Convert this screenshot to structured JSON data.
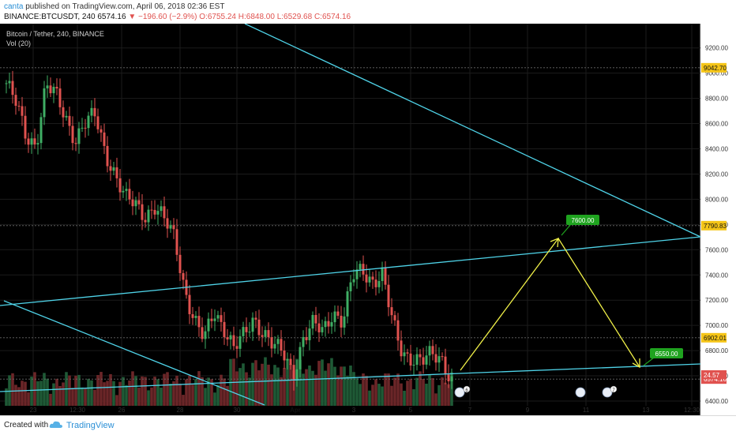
{
  "header": {
    "author": "canta",
    "published": "published on TradingView.com, April 06, 2018 02:36 EST",
    "symbol": "BINANCE:BTCUSDT, 240",
    "change": "−196.60 (−2.9%)",
    "ohlc": "O:6755.24 H:6848.00 L:6529.68 C:6574.16",
    "last": "6574.16"
  },
  "legend": {
    "title": "Bitcoin / Tether, 240, BINANCE",
    "vol": "Vol (20)"
  },
  "colors": {
    "background": "#000000",
    "up": "#3fae64",
    "down": "#e0524f",
    "trendline": "#4fd3e8",
    "arrow": "#f0f048",
    "target_label": "#1fa31f"
  },
  "footer": {
    "created_with": "Created with",
    "brand": "TradingView"
  },
  "chart_data": {
    "type": "candlestick",
    "title": "Bitcoin / Tether, 240, BINANCE",
    "y_axis_ticks": [
      6400,
      6600,
      6800,
      7000,
      7200,
      7400,
      7600,
      7800,
      8000,
      8200,
      8400,
      8600,
      8800,
      9000,
      9200
    ],
    "y_tick_labels": [
      "6400.00",
      "6600.00",
      "6800.00",
      "7000.00",
      "7200.00",
      "7400.00",
      "7600.00",
      "7800.00",
      "8000.00",
      "8200.00",
      "8400.00",
      "8600.00",
      "8800.00",
      "9000.00",
      "9200.00"
    ],
    "ylim": [
      6300,
      9260
    ],
    "x_tick_labels": [
      "23",
      "12:30",
      "26",
      "28",
      "30",
      "Apr",
      "3",
      "5",
      "7",
      "9",
      "11",
      "13",
      "12:30"
    ],
    "price_levels": [
      {
        "value": 9042.7,
        "label": "9042.70",
        "color": "#f5c518"
      },
      {
        "value": 7790.83,
        "label": "7790.83",
        "color": "#f5c518"
      },
      {
        "value": 6902.01,
        "label": "6902.01",
        "color": "#f5c518"
      },
      {
        "value": 6574.16,
        "label": "6574.16",
        "color": "#e0524f"
      }
    ],
    "volume_axis_label": "24.57",
    "projection_targets": [
      {
        "label": "7600.00",
        "value": 7600
      },
      {
        "label": "6550.00",
        "value": 6550
      }
    ],
    "event_badges": [
      "6",
      "7"
    ],
    "close_trend": [
      8920,
      8750,
      8500,
      8440,
      8900,
      8820,
      8650,
      8480,
      8600,
      8660,
      8380,
      8200,
      8000,
      7960,
      7880,
      7940,
      7820,
      7700,
      7300,
      7030,
      6880,
      7120,
      6990,
      6810,
      6910,
      7060,
      6950,
      6830,
      6770,
      6620,
      6900,
      7000,
      6950,
      7120,
      7030,
      7380,
      7440,
      7360,
      7400,
      7020,
      6790,
      6750,
      6710,
      6760,
      6740,
      6574
    ]
  }
}
